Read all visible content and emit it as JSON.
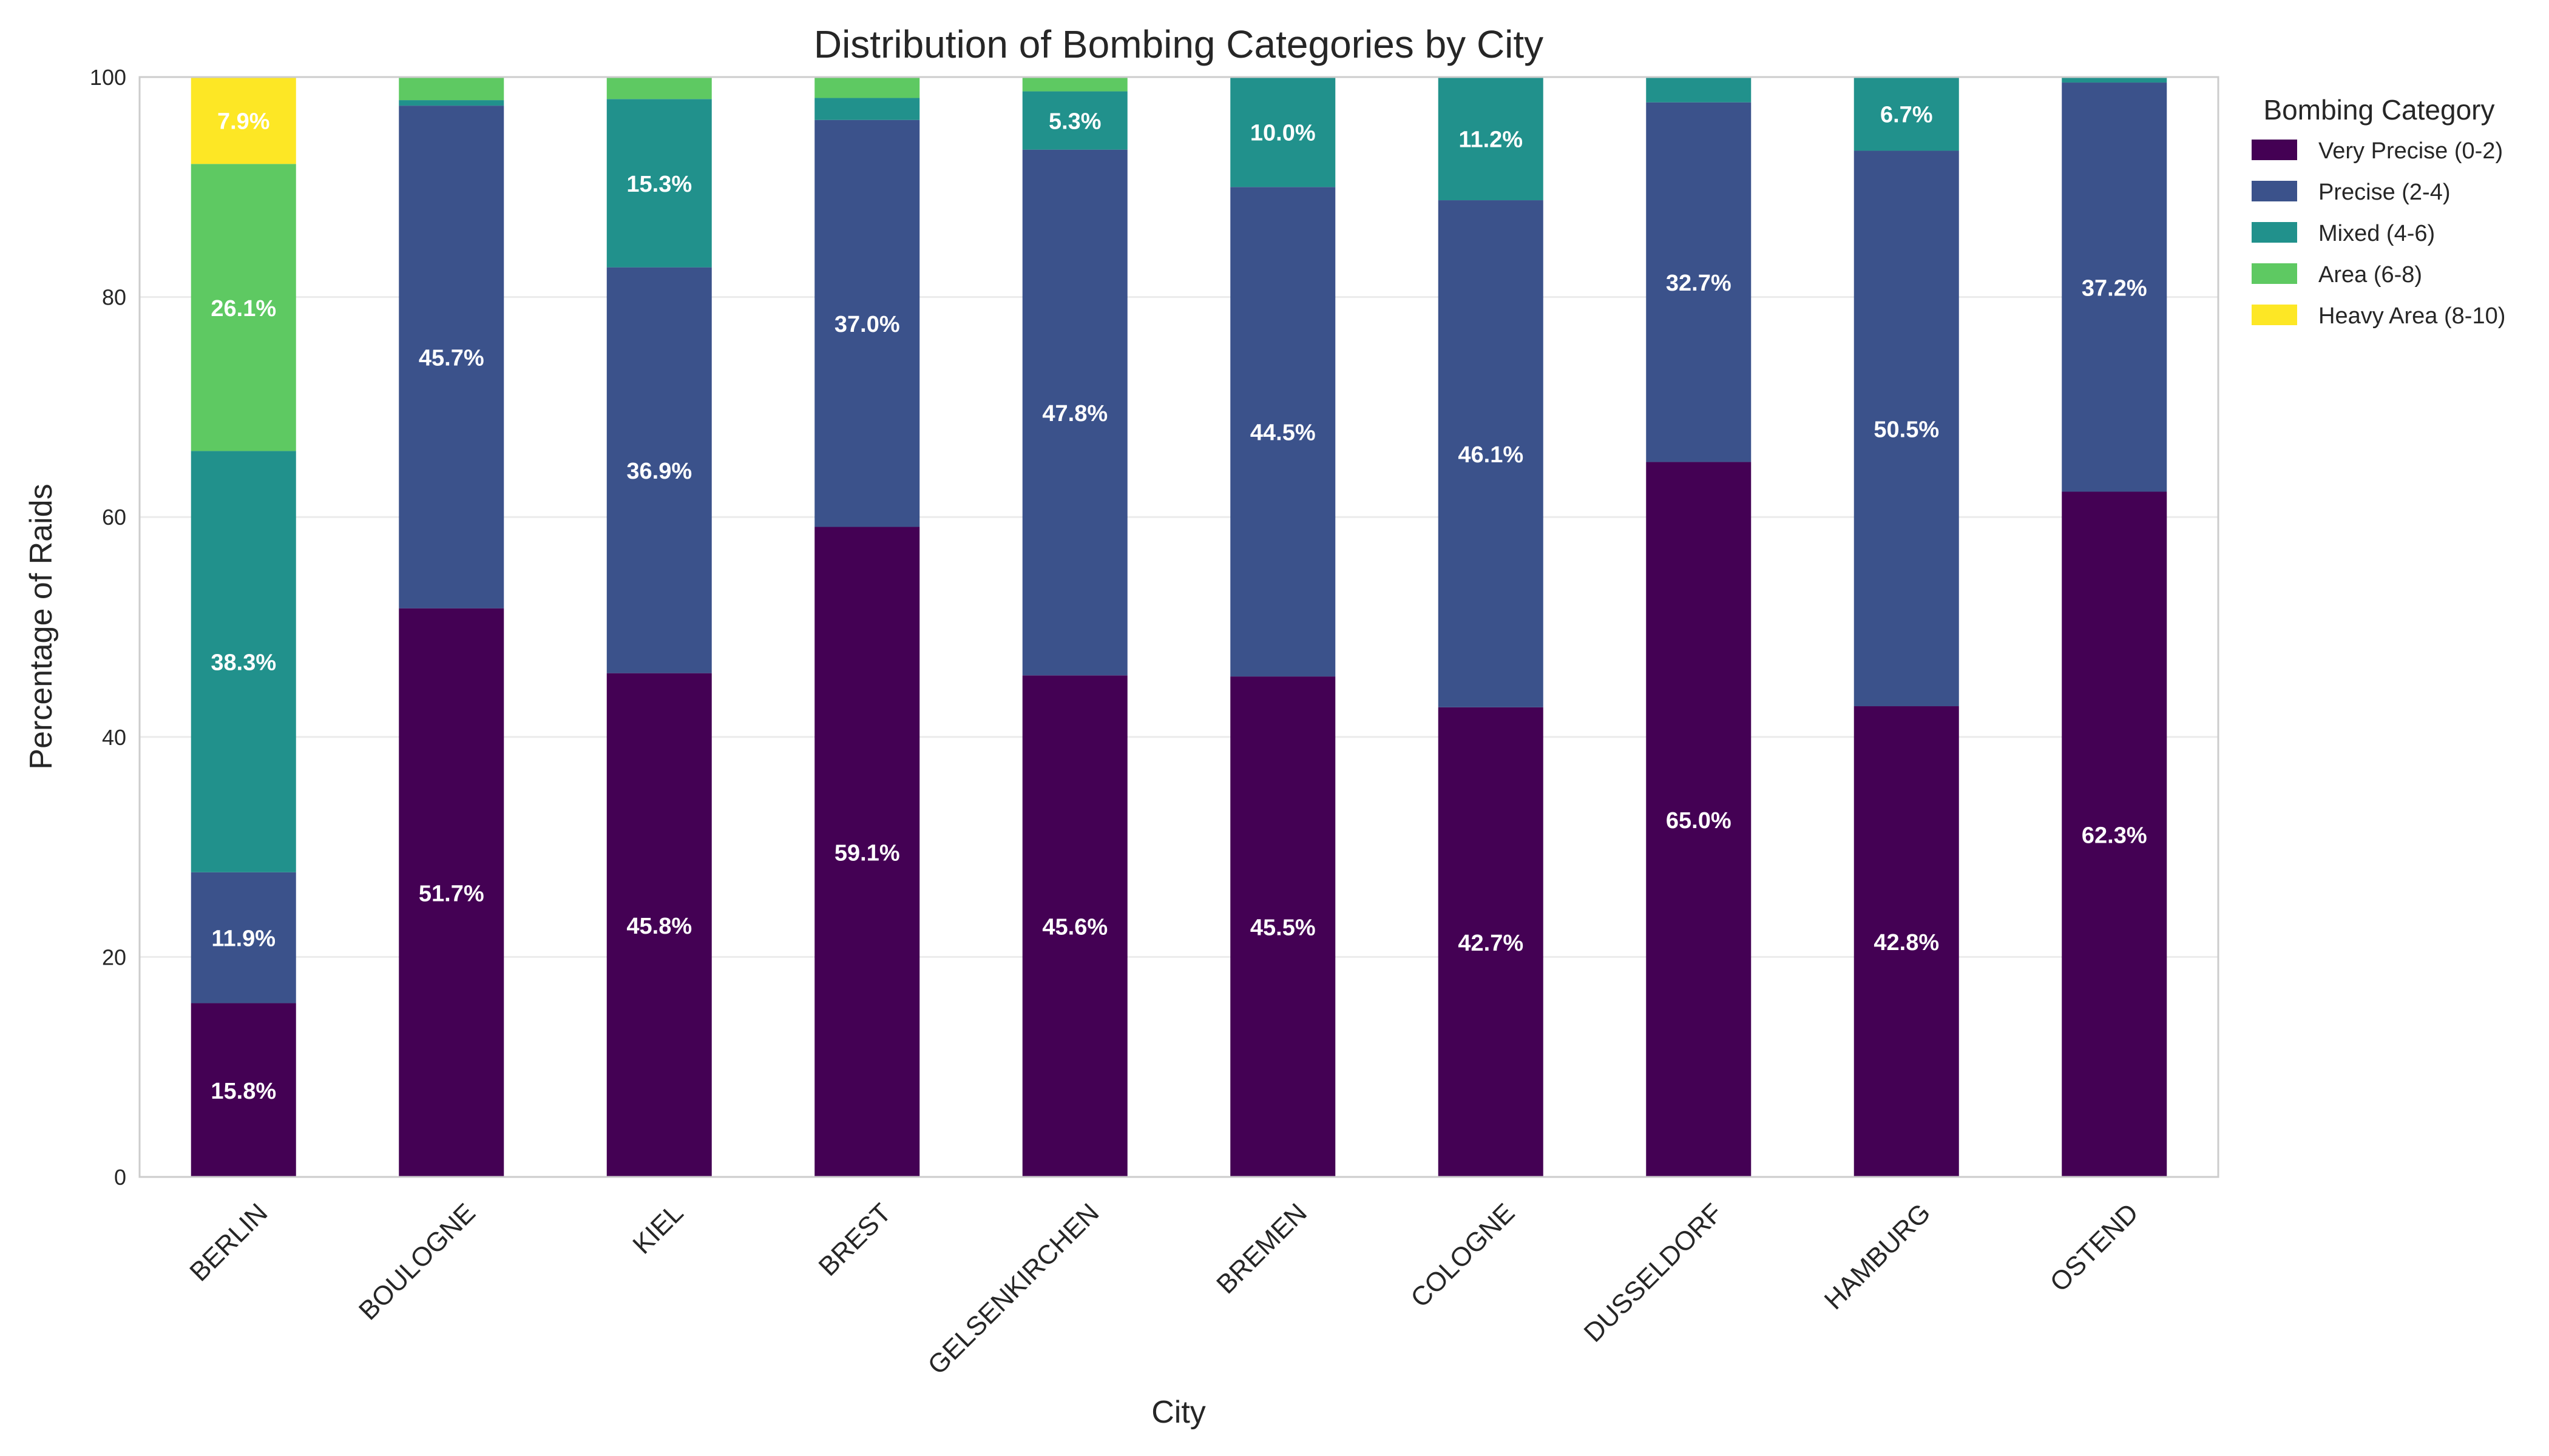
{
  "chart_data": {
    "type": "bar",
    "stacked": true,
    "title": "Distribution of Bombing Categories by City",
    "xlabel": "City",
    "ylabel": "Percentage of Raids",
    "ylim": [
      0,
      100
    ],
    "yticks": [
      0,
      20,
      40,
      60,
      80,
      100
    ],
    "grid": "y",
    "legend": {
      "title": "Bombing Category",
      "placement": "right, outside plot"
    },
    "categories": [
      "BERLIN",
      "BOULOGNE",
      "KIEL",
      "BREST",
      "GELSENKIRCHEN",
      "BREMEN",
      "COLOGNE",
      "DUSSELDORF",
      "HAMBURG",
      "OSTEND"
    ],
    "series": [
      {
        "name": "Very Precise (0-2)",
        "color": "#440154",
        "values": [
          15.8,
          51.7,
          45.8,
          59.1,
          45.6,
          45.5,
          42.7,
          65.0,
          42.8,
          62.3
        ]
      },
      {
        "name": "Precise (2-4)",
        "color": "#3b528b",
        "values": [
          11.9,
          45.7,
          36.9,
          37.0,
          47.8,
          44.5,
          46.1,
          32.7,
          50.5,
          37.2
        ]
      },
      {
        "name": "Mixed (4-6)",
        "color": "#21918c",
        "values": [
          38.3,
          0.5,
          15.3,
          2.0,
          5.3,
          10.0,
          11.2,
          2.3,
          6.7,
          0.5
        ]
      },
      {
        "name": "Area (6-8)",
        "color": "#5ec962",
        "values": [
          26.1,
          2.1,
          2.0,
          1.9,
          1.3,
          0.0,
          0.0,
          0.0,
          0.0,
          0.0
        ]
      },
      {
        "name": "Heavy Area (8-10)",
        "color": "#fde725",
        "values": [
          7.9,
          0.0,
          0.0,
          0.0,
          0.0,
          0.0,
          0.0,
          0.0,
          0.0,
          0.0
        ]
      }
    ],
    "label_threshold": 5
  }
}
